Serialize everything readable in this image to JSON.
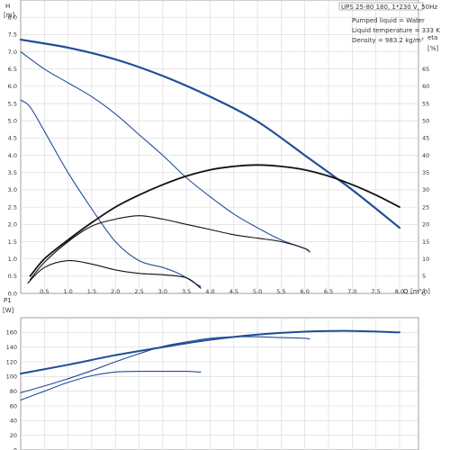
{
  "colors": {
    "grid": "#d6d6d6",
    "axis": "#888888",
    "head": "#1f4e96",
    "eta": "#111111",
    "power": "#1f4e96",
    "text": "#333333"
  },
  "chart_data": [
    {
      "type": "line",
      "title": "UPS 25-80 180, 1*230 V, 50Hz",
      "legend": [
        "Pumped liquid = Water",
        "Liquid temperature = 333 K",
        "Density = 983.2 kg/m³"
      ],
      "legend_placement": "top-right",
      "grid": true,
      "xlabel": "Q",
      "xunit": "[m³/h]",
      "ylabel_left": "H",
      "yunit_left": "[m]",
      "ylabel_right": "eta",
      "yunit_right": "[%]",
      "xlim": [
        0,
        8.4
      ],
      "ylim_left": [
        0,
        8.5
      ],
      "ylim_right": [
        0,
        85
      ],
      "x_ticks": [
        "0.5",
        "1.0",
        "1.5",
        "2.0",
        "2.5",
        "3.0",
        "3.5",
        "4.0",
        "4.5",
        "5.0",
        "5.5",
        "6.0",
        "6.5",
        "7.0",
        "7.5",
        "8.0"
      ],
      "y_ticks_left": [
        "0.0",
        "0.5",
        "1.0",
        "1.5",
        "2.0",
        "2.5",
        "3.0",
        "3.5",
        "4.0",
        "4.5",
        "5.0",
        "5.5",
        "6.0",
        "6.5",
        "7.0",
        "7.5",
        "8.0"
      ],
      "y_ticks_right": [
        "0",
        "5",
        "10",
        "15",
        "20",
        "25",
        "30",
        "35",
        "40",
        "45",
        "50",
        "55",
        "60",
        "65"
      ],
      "series": [
        {
          "axis": "left",
          "color": "head",
          "width": 2.2,
          "x": [
            0,
            1,
            2,
            3,
            4,
            5,
            6,
            7,
            8
          ],
          "y": [
            7.35,
            7.12,
            6.78,
            6.3,
            5.7,
            4.98,
            4.0,
            3.0,
            1.9
          ]
        },
        {
          "axis": "left",
          "color": "head",
          "width": 1.1,
          "x": [
            0,
            0.5,
            1,
            1.5,
            2,
            2.5,
            3,
            3.5,
            4,
            4.5,
            5,
            5.5,
            6,
            6.1
          ],
          "y": [
            7.0,
            6.5,
            6.1,
            5.7,
            5.2,
            4.6,
            4.0,
            3.35,
            2.8,
            2.3,
            1.9,
            1.55,
            1.3,
            1.2
          ]
        },
        {
          "axis": "left",
          "color": "head",
          "width": 1.1,
          "x": [
            0,
            0.2,
            0.5,
            1,
            1.5,
            2,
            2.5,
            3,
            3.3,
            3.5,
            3.7,
            3.8
          ],
          "y": [
            5.6,
            5.4,
            4.7,
            3.5,
            2.45,
            1.5,
            0.95,
            0.75,
            0.6,
            0.45,
            0.28,
            0.2
          ]
        },
        {
          "axis": "right",
          "color": "eta",
          "width": 1.8,
          "x": [
            0.2,
            0.5,
            1,
            1.5,
            2,
            2.5,
            3,
            3.5,
            4,
            4.5,
            5,
            5.5,
            6,
            6.5,
            7,
            7.5,
            8
          ],
          "y": [
            5,
            10,
            15.5,
            20.5,
            25,
            28.5,
            31.5,
            34,
            35.8,
            36.8,
            37.2,
            36.8,
            35.8,
            34,
            31.5,
            28.5,
            25
          ]
        },
        {
          "axis": "right",
          "color": "eta",
          "width": 1.1,
          "x": [
            0.2,
            0.5,
            1,
            1.5,
            2,
            2.5,
            3,
            3.5,
            4,
            4.5,
            5,
            5.5,
            6,
            6.1
          ],
          "y": [
            4,
            9,
            15,
            19.5,
            21.5,
            22.5,
            21.5,
            20,
            18.5,
            17,
            16,
            15,
            13,
            12
          ]
        },
        {
          "axis": "right",
          "color": "eta",
          "width": 1.1,
          "x": [
            0.15,
            0.5,
            1,
            1.5,
            2,
            2.5,
            3,
            3.5,
            3.8
          ],
          "y": [
            3,
            7.5,
            9.5,
            8.5,
            6.8,
            5.8,
            5.4,
            4.5,
            1.5
          ]
        }
      ]
    },
    {
      "type": "line",
      "grid": true,
      "ylabel": "P1",
      "yunit": "[W]",
      "xlim": [
        0,
        8.4
      ],
      "ylim": [
        0,
        180
      ],
      "y_ticks": [
        "0",
        "20",
        "40",
        "60",
        "80",
        "100",
        "120",
        "140",
        "160"
      ],
      "series": [
        {
          "color": "power",
          "width": 2.0,
          "x": [
            0,
            1,
            2,
            3,
            4,
            5,
            6,
            7,
            8
          ],
          "y": [
            104,
            116,
            129,
            140,
            150,
            157,
            161,
            162,
            160
          ]
        },
        {
          "color": "power",
          "width": 1.1,
          "x": [
            0,
            0.5,
            1,
            1.5,
            2,
            2.5,
            3,
            3.5,
            4,
            4.5,
            5,
            5.5,
            6,
            6.1
          ],
          "y": [
            78,
            87,
            97,
            108,
            120,
            131,
            141,
            147,
            152,
            154,
            154,
            153,
            152,
            151
          ]
        },
        {
          "color": "power",
          "width": 1.1,
          "x": [
            0,
            0.5,
            1,
            1.5,
            2,
            2.5,
            3,
            3.5,
            3.8
          ],
          "y": [
            68,
            80,
            92,
            101,
            106,
            107,
            107,
            107,
            106
          ]
        }
      ]
    }
  ]
}
